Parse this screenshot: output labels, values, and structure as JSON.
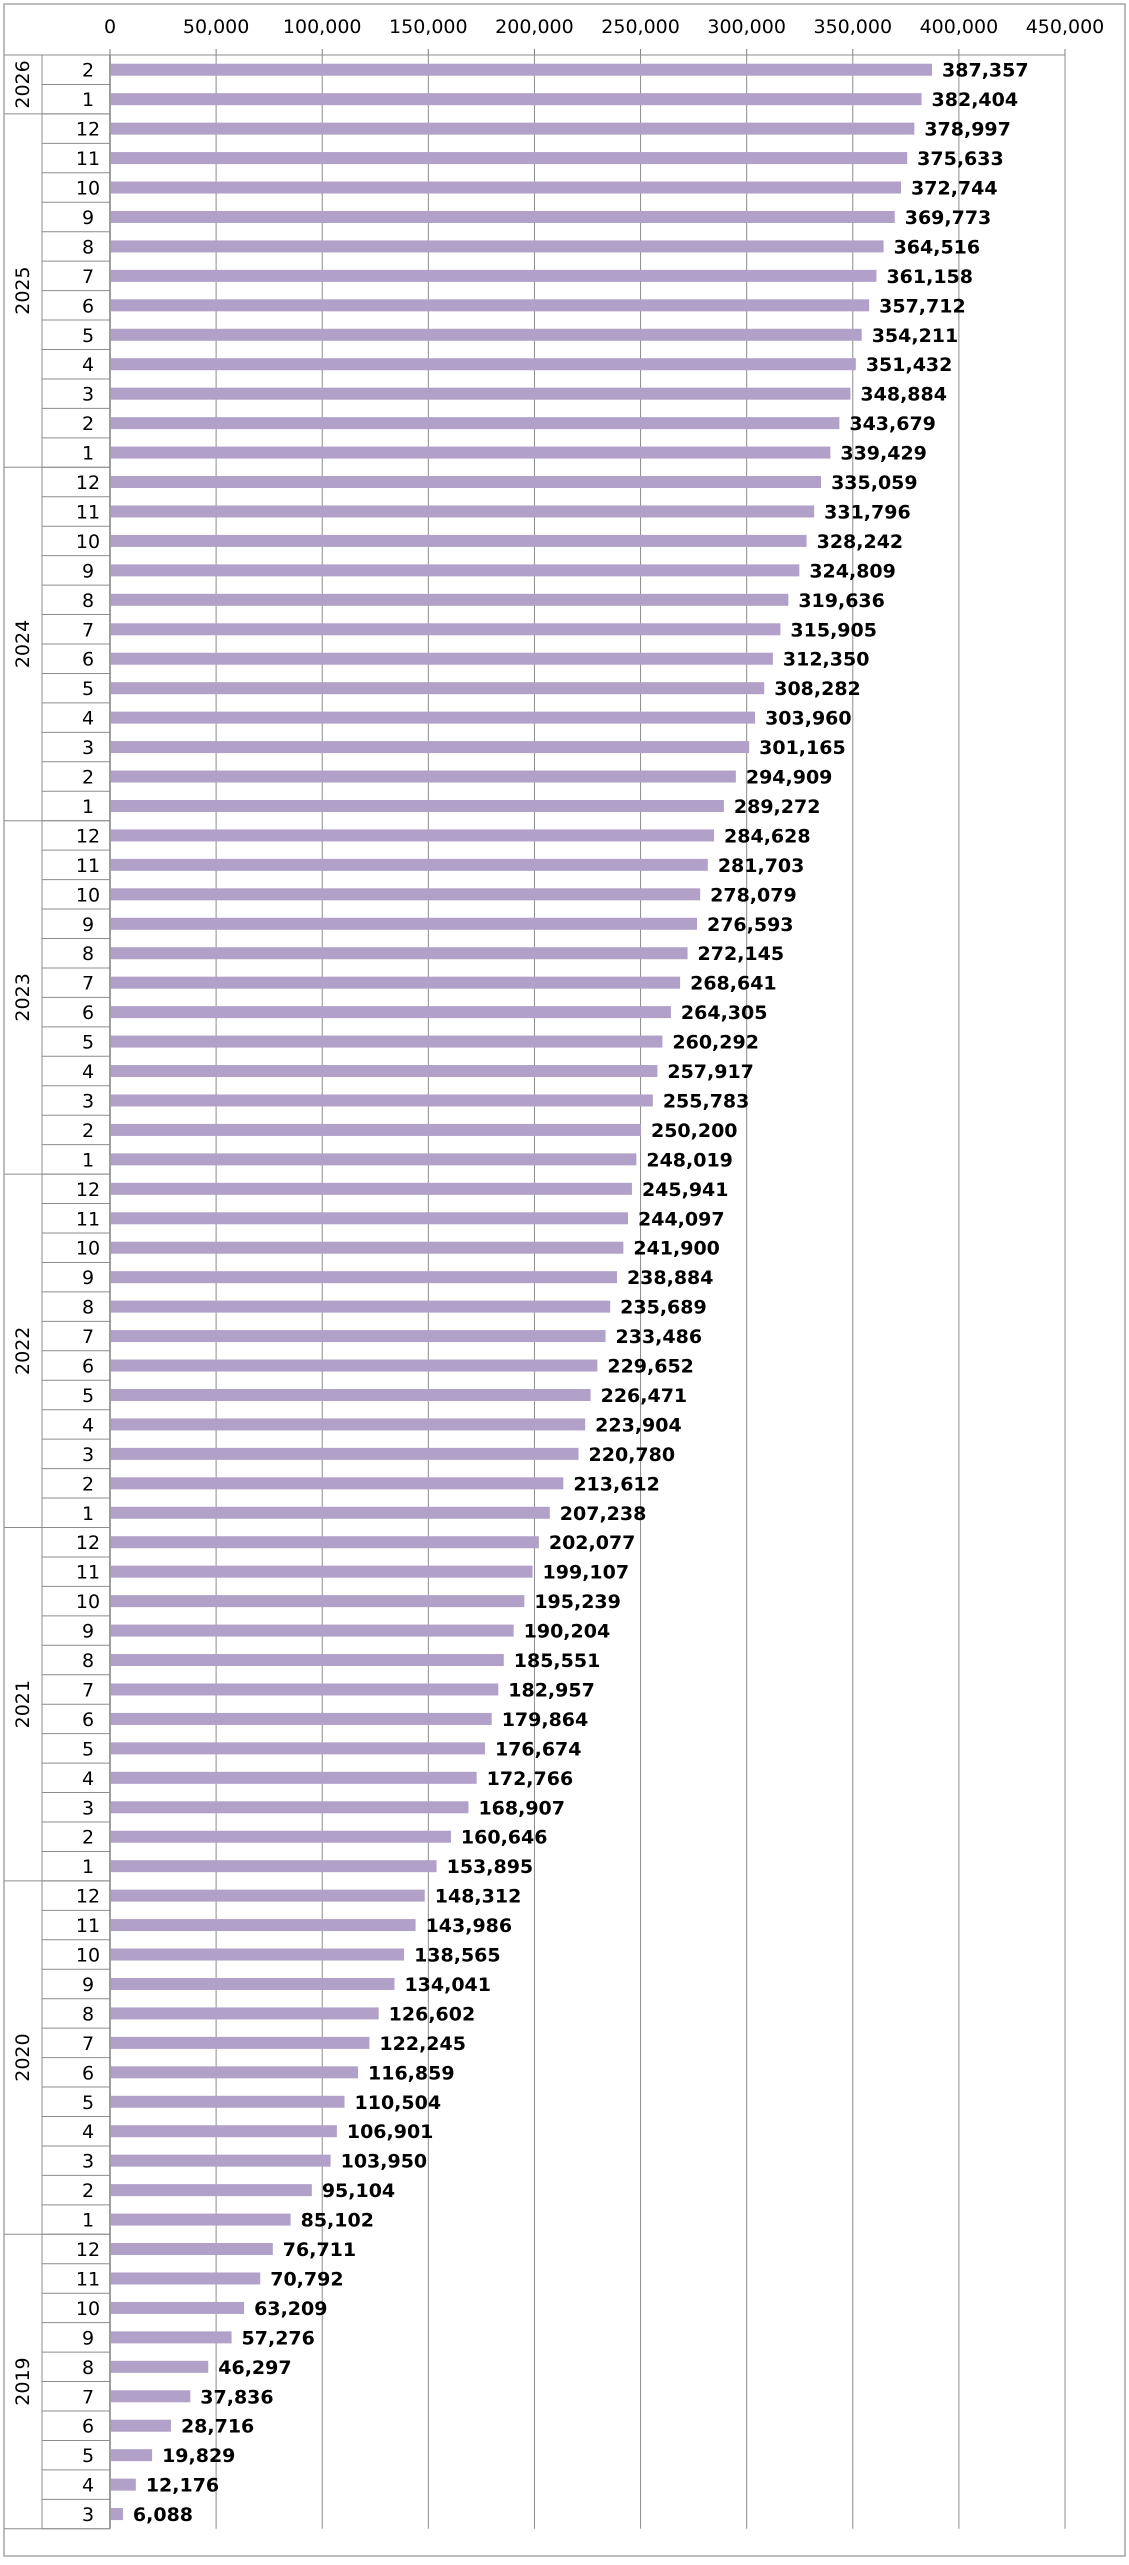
{
  "chart_data": {
    "type": "bar",
    "orientation": "horizontal",
    "title": "",
    "xlabel": "",
    "ylabel": "",
    "xlim": [
      0,
      450000
    ],
    "x_ticks": [
      0,
      50000,
      100000,
      150000,
      200000,
      250000,
      300000,
      350000,
      400000,
      450000
    ],
    "x_tick_labels": [
      "0",
      "50,000",
      "100,000",
      "150,000",
      "200,000",
      "250,000",
      "300,000",
      "350,000",
      "400,000",
      "450,000"
    ],
    "grid": "vertical",
    "bar_color": "#b1a0c7",
    "legend": "none",
    "groups": [
      {
        "year": "2026",
        "months": [
          "2",
          "1"
        ]
      },
      {
        "year": "2025",
        "months": [
          "12",
          "11",
          "10",
          "9",
          "8",
          "7",
          "6",
          "5",
          "4",
          "3",
          "2",
          "1"
        ]
      },
      {
        "year": "2024",
        "months": [
          "12",
          "11",
          "10",
          "9",
          "8",
          "7",
          "6",
          "5",
          "4",
          "3",
          "2",
          "1"
        ]
      },
      {
        "year": "2023",
        "months": [
          "12",
          "11",
          "10",
          "9",
          "8",
          "7",
          "6",
          "5",
          "4",
          "3",
          "2",
          "1"
        ]
      },
      {
        "year": "2022",
        "months": [
          "12",
          "11",
          "10",
          "9",
          "8",
          "7",
          "6",
          "5",
          "4",
          "3",
          "2",
          "1"
        ]
      },
      {
        "year": "2021",
        "months": [
          "12",
          "11",
          "10",
          "9",
          "8",
          "7",
          "6",
          "5",
          "4",
          "3",
          "2",
          "1"
        ]
      },
      {
        "year": "2020",
        "months": [
          "12",
          "11",
          "10",
          "9",
          "8",
          "7",
          "6",
          "5",
          "4",
          "3",
          "2",
          "1"
        ]
      },
      {
        "year": "2019",
        "months": [
          "12",
          "11",
          "10",
          "9",
          "8",
          "7",
          "6",
          "5",
          "4",
          "3"
        ]
      }
    ],
    "values": [
      387357,
      382404,
      378997,
      375633,
      372744,
      369773,
      364516,
      361158,
      357712,
      354211,
      351432,
      348884,
      343679,
      339429,
      335059,
      331796,
      328242,
      324809,
      319636,
      315905,
      312350,
      308282,
      303960,
      301165,
      294909,
      289272,
      284628,
      281703,
      278079,
      276593,
      272145,
      268641,
      264305,
      260292,
      257917,
      255783,
      250200,
      248019,
      245941,
      244097,
      241900,
      238884,
      235689,
      233486,
      229652,
      226471,
      223904,
      220780,
      213612,
      207238,
      202077,
      199107,
      195239,
      190204,
      185551,
      182957,
      179864,
      176674,
      172766,
      168907,
      160646,
      153895,
      148312,
      143986,
      138565,
      134041,
      126602,
      122245,
      116859,
      110504,
      106901,
      103950,
      95104,
      85102,
      76711,
      70792,
      63209,
      57276,
      46297,
      37836,
      28716,
      19829,
      12176,
      6088
    ],
    "value_labels": [
      "387,357",
      "382,404",
      "378,997",
      "375,633",
      "372,744",
      "369,773",
      "364,516",
      "361,158",
      "357,712",
      "354,211",
      "351,432",
      "348,884",
      "343,679",
      "339,429",
      "335,059",
      "331,796",
      "328,242",
      "324,809",
      "319,636",
      "315,905",
      "312,350",
      "308,282",
      "303,960",
      "301,165",
      "294,909",
      "289,272",
      "284,628",
      "281,703",
      "278,079",
      "276,593",
      "272,145",
      "268,641",
      "264,305",
      "260,292",
      "257,917",
      "255,783",
      "250,200",
      "248,019",
      "245,941",
      "244,097",
      "241,900",
      "238,884",
      "235,689",
      "233,486",
      "229,652",
      "226,471",
      "223,904",
      "220,780",
      "213,612",
      "207,238",
      "202,077",
      "199,107",
      "195,239",
      "190,204",
      "185,551",
      "182,957",
      "179,864",
      "176,674",
      "172,766",
      "168,907",
      "160,646",
      "153,895",
      "148,312",
      "143,986",
      "138,565",
      "134,041",
      "126,602",
      "122,245",
      "116,859",
      "110,504",
      "106,901",
      "103,950",
      "95,104",
      "85,102",
      "76,711",
      "70,792",
      "63,209",
      "57,276",
      "46,297",
      "37,836",
      "28,716",
      "19,829",
      "12,176",
      "6,088"
    ]
  }
}
